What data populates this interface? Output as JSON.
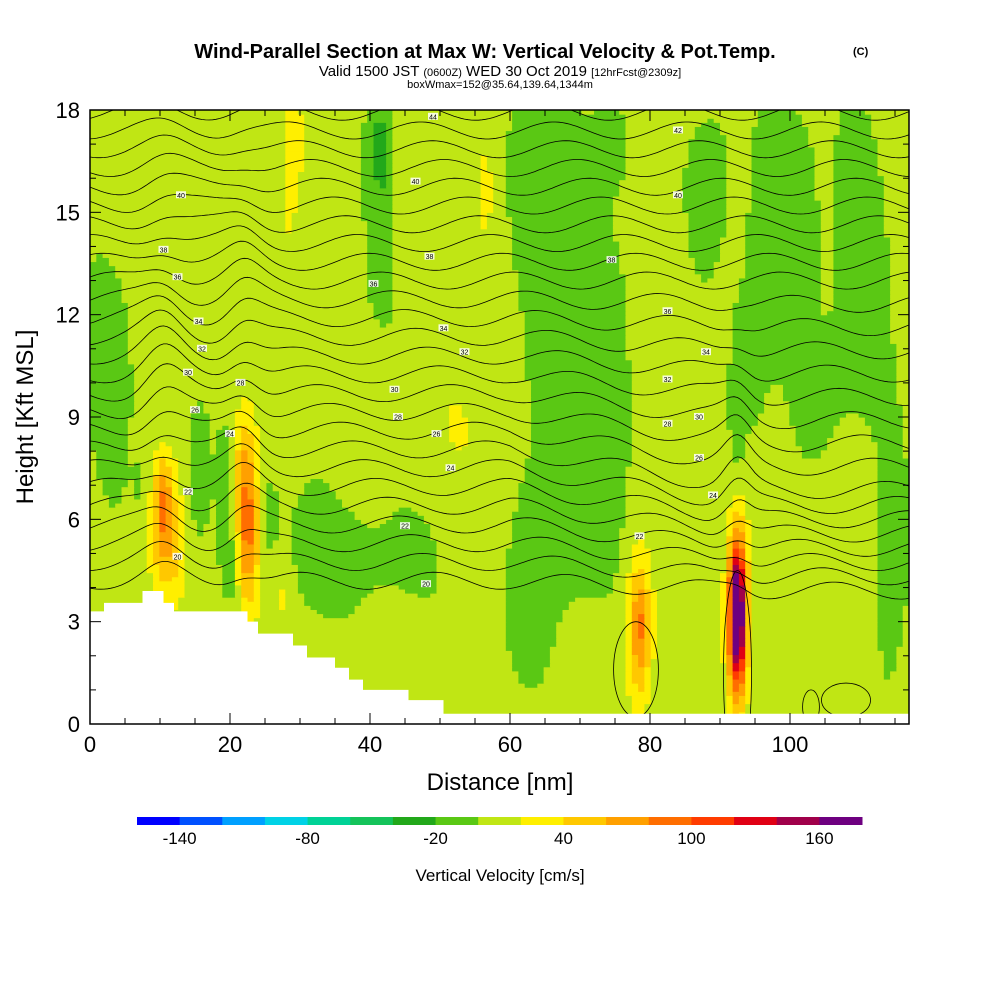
{
  "chart_data": {
    "type": "heatmap",
    "title": "Wind-Parallel Section at Max W: Vertical Velocity & Pot.Temp.",
    "title_mark": "(C)",
    "subtitle_parts": [
      "Valid 1500 JST ",
      "(0600Z)",
      " WED 30 Oct 2019 ",
      "[12hrFcst@2309z]"
    ],
    "subtitle2": "boxWmax=152@35.64,139.64,1344m",
    "xlabel": "Distance [nm]",
    "ylabel": "Height [Kft MSL]",
    "xlim": [
      0,
      117
    ],
    "ylim": [
      0,
      18
    ],
    "xticks": [
      0,
      20,
      40,
      60,
      80,
      100
    ],
    "yticks": [
      0,
      3,
      6,
      9,
      12,
      15,
      18
    ],
    "colorbar": {
      "label": "Vertical Velocity [cm/s]",
      "tick_labels": [
        "-140",
        "-80",
        "-20",
        "40",
        "100",
        "160"
      ],
      "tick_values": [
        -140,
        -80,
        -20,
        40,
        100,
        160
      ],
      "min": -160,
      "max": 180,
      "step": 20,
      "colors": [
        "#0000ff",
        "#0050ff",
        "#00a0ff",
        "#00d2e6",
        "#00d296",
        "#14c35a",
        "#22a81a",
        "#5ac814",
        "#c0e614",
        "#ffef00",
        "#ffc800",
        "#ffa000",
        "#ff6e00",
        "#ff3c00",
        "#e00014",
        "#a0004a",
        "#6e0080"
      ]
    },
    "background_color": "#64cc14",
    "terrain": [
      [
        0,
        3.3
      ],
      [
        2,
        3.3
      ],
      [
        2,
        3.55
      ],
      [
        7.5,
        3.55
      ],
      [
        7.5,
        3.9
      ],
      [
        10.5,
        3.9
      ],
      [
        10.5,
        3.55
      ],
      [
        12,
        3.55
      ],
      [
        12,
        3.3
      ],
      [
        22.5,
        3.3
      ],
      [
        22.5,
        3.0
      ],
      [
        24,
        3.0
      ],
      [
        24,
        2.65
      ],
      [
        29,
        2.65
      ],
      [
        29,
        2.3
      ],
      [
        31,
        2.3
      ],
      [
        31,
        1.95
      ],
      [
        35,
        1.95
      ],
      [
        35,
        1.65
      ],
      [
        37,
        1.65
      ],
      [
        37,
        1.3
      ],
      [
        39,
        1.3
      ],
      [
        39,
        1.0
      ],
      [
        45.5,
        1.0
      ],
      [
        45.5,
        0.7
      ],
      [
        50.5,
        0.7
      ],
      [
        50.5,
        0.3
      ],
      [
        117,
        0.3
      ]
    ],
    "features": [
      {
        "x": 10.5,
        "y": 6.0,
        "sx": 1.3,
        "sy": 1.7,
        "w": 48
      },
      {
        "x": 10.5,
        "y": 6.4,
        "sx": 0.7,
        "sy": 1.0,
        "w": 26
      },
      {
        "x": 12.5,
        "y": 5.0,
        "sx": 0.9,
        "sy": 1.0,
        "w": 22
      },
      {
        "x": 22.5,
        "y": 5.6,
        "sx": 1.4,
        "sy": 1.9,
        "w": 62
      },
      {
        "x": 22.5,
        "y": 5.8,
        "sx": 0.8,
        "sy": 1.1,
        "w": 25
      },
      {
        "x": 22.0,
        "y": 7.9,
        "sx": 1.0,
        "sy": 1.0,
        "w": 28
      },
      {
        "x": 20.5,
        "y": 4.5,
        "sx": 0.8,
        "sy": 0.9,
        "w": -18
      },
      {
        "x": 27.5,
        "y": 3.8,
        "sx": 1.2,
        "sy": 0.9,
        "w": 18
      },
      {
        "x": 78.5,
        "y": 2.8,
        "sx": 1.3,
        "sy": 1.6,
        "w": 68
      },
      {
        "x": 78.5,
        "y": 2.9,
        "sx": 0.6,
        "sy": 0.9,
        "w": 15
      },
      {
        "x": 92.5,
        "y": 3.2,
        "sx": 1.0,
        "sy": 1.7,
        "w": 185
      },
      {
        "x": 92.5,
        "y": 3.3,
        "sx": 0.4,
        "sy": 0.9,
        "w": 45
      },
      {
        "x": 9.5,
        "y": 6.5,
        "sx": 2.6,
        "sy": 2.5,
        "w": 10
      },
      {
        "x": 10.5,
        "y": 8.8,
        "sx": 1.5,
        "sy": 1.0,
        "w": -20
      },
      {
        "x": 7.5,
        "y": 7.0,
        "sx": 1.0,
        "sy": 0.8,
        "w": -12
      },
      {
        "x": 15.5,
        "y": 7.2,
        "sx": 1.0,
        "sy": 1.3,
        "w": -16
      },
      {
        "x": 19.5,
        "y": 6.5,
        "sx": 0.9,
        "sy": 1.4,
        "w": -18
      },
      {
        "x": 25.5,
        "y": 6.2,
        "sx": 1.0,
        "sy": 1.4,
        "w": -14
      },
      {
        "x": 31.0,
        "y": 5.0,
        "sx": 3.0,
        "sy": 1.2,
        "w": -12
      },
      {
        "x": 42.0,
        "y": 5.0,
        "sx": 6.0,
        "sy": 1.2,
        "w": -10
      },
      {
        "x": 3.0,
        "y": 10.0,
        "sx": 2.5,
        "sy": 2.5,
        "w": -12
      },
      {
        "x": 29.0,
        "y": 17.0,
        "sx": 1.1,
        "sy": 1.4,
        "w": 26
      },
      {
        "x": 28.0,
        "y": 14.0,
        "sx": 1.2,
        "sy": 2.0,
        "w": 14
      },
      {
        "x": 27.0,
        "y": 10.5,
        "sx": 1.2,
        "sy": 1.5,
        "w": 12
      },
      {
        "x": 41.5,
        "y": 15.0,
        "sx": 1.2,
        "sy": 2.3,
        "w": -22
      },
      {
        "x": 41.5,
        "y": 17.2,
        "sx": 1.0,
        "sy": 0.8,
        "w": -18
      },
      {
        "x": 56.5,
        "y": 15.5,
        "sx": 1.0,
        "sy": 1.5,
        "w": 22
      },
      {
        "x": 46.0,
        "y": 12.5,
        "sx": 1.6,
        "sy": 2.5,
        "w": 10
      },
      {
        "x": 41.0,
        "y": 9.5,
        "sx": 1.0,
        "sy": 1.5,
        "w": 14
      },
      {
        "x": 52.0,
        "y": 9.0,
        "sx": 3.5,
        "sy": 1.2,
        "w": 12
      },
      {
        "x": 62.0,
        "y": 16.5,
        "sx": 2.0,
        "sy": 2.0,
        "w": -12
      },
      {
        "x": 66.0,
        "y": 14.0,
        "sx": 3.0,
        "sy": 4.0,
        "w": -16
      },
      {
        "x": 73.0,
        "y": 12.0,
        "sx": 4.0,
        "sy": 2.5,
        "w": -12
      },
      {
        "x": 74.0,
        "y": 17.0,
        "sx": 2.0,
        "sy": 1.0,
        "w": -14
      },
      {
        "x": 72.0,
        "y": 8.5,
        "sx": 3.0,
        "sy": 2.2,
        "w": -10
      },
      {
        "x": 88.0,
        "y": 15.5,
        "sx": 2.5,
        "sy": 2.0,
        "w": -14
      },
      {
        "x": 100.0,
        "y": 15.0,
        "sx": 3.0,
        "sy": 2.5,
        "w": -16
      },
      {
        "x": 110.0,
        "y": 13.5,
        "sx": 2.5,
        "sy": 3.0,
        "w": -14
      },
      {
        "x": 94.0,
        "y": 10.5,
        "sx": 2.0,
        "sy": 2.0,
        "w": -12
      },
      {
        "x": 92.5,
        "y": 9.2,
        "sx": 0.6,
        "sy": 1.3,
        "w": -18
      },
      {
        "x": 105.0,
        "y": 9.5,
        "sx": 3.0,
        "sy": 2.0,
        "w": -8
      },
      {
        "x": 82.0,
        "y": 12.5,
        "sx": 3.0,
        "sy": 2.5,
        "w": 8
      },
      {
        "x": 114.0,
        "y": 4.0,
        "sx": 2.0,
        "sy": 3.5,
        "w": -10
      },
      {
        "x": 106.0,
        "y": 5.0,
        "sx": 3.0,
        "sy": 2.0,
        "w": 8
      },
      {
        "x": 61.0,
        "y": 3.5,
        "sx": 2.5,
        "sy": 2.5,
        "w": -8
      },
      {
        "x": 70.0,
        "y": 5.0,
        "sx": 4.0,
        "sy": 2.0,
        "w": -8
      },
      {
        "x": 55.0,
        "y": 6.5,
        "sx": 4.0,
        "sy": 1.5,
        "w": 8
      }
    ],
    "contour_labels": [
      {
        "text": "44",
        "x": 49,
        "y": 17.8
      },
      {
        "text": "42",
        "x": 84,
        "y": 17.4
      },
      {
        "text": "40",
        "x": 13,
        "y": 15.5
      },
      {
        "text": "40",
        "x": 46.5,
        "y": 15.9
      },
      {
        "text": "40",
        "x": 84,
        "y": 15.5
      },
      {
        "text": "38",
        "x": 10.5,
        "y": 13.9
      },
      {
        "text": "38",
        "x": 48.5,
        "y": 13.7
      },
      {
        "text": "38",
        "x": 74.5,
        "y": 13.6
      },
      {
        "text": "36",
        "x": 12.5,
        "y": 13.1
      },
      {
        "text": "36",
        "x": 40.5,
        "y": 12.9
      },
      {
        "text": "36",
        "x": 82.5,
        "y": 12.1
      },
      {
        "text": "34",
        "x": 15.5,
        "y": 11.8
      },
      {
        "text": "34",
        "x": 50.5,
        "y": 11.6
      },
      {
        "text": "34",
        "x": 88,
        "y": 10.9
      },
      {
        "text": "32",
        "x": 16,
        "y": 11.0
      },
      {
        "text": "32",
        "x": 53.5,
        "y": 10.9
      },
      {
        "text": "32",
        "x": 82.5,
        "y": 10.1
      },
      {
        "text": "30",
        "x": 14,
        "y": 10.3
      },
      {
        "text": "30",
        "x": 43.5,
        "y": 9.8
      },
      {
        "text": "30",
        "x": 87,
        "y": 9.0
      },
      {
        "text": "28",
        "x": 21.5,
        "y": 10.0
      },
      {
        "text": "28",
        "x": 44,
        "y": 9.0
      },
      {
        "text": "28",
        "x": 82.5,
        "y": 8.8
      },
      {
        "text": "26",
        "x": 15,
        "y": 9.2
      },
      {
        "text": "26",
        "x": 49.5,
        "y": 8.5
      },
      {
        "text": "26",
        "x": 87,
        "y": 7.8
      },
      {
        "text": "24",
        "x": 20,
        "y": 8.5
      },
      {
        "text": "24",
        "x": 51.5,
        "y": 7.5
      },
      {
        "text": "24",
        "x": 89,
        "y": 6.7
      },
      {
        "text": "22",
        "x": 14,
        "y": 6.8
      },
      {
        "text": "22",
        "x": 45,
        "y": 5.8
      },
      {
        "text": "22",
        "x": 78.5,
        "y": 5.5
      },
      {
        "text": "20",
        "x": 12.5,
        "y": 4.9
      },
      {
        "text": "20",
        "x": 48,
        "y": 4.1
      }
    ]
  }
}
